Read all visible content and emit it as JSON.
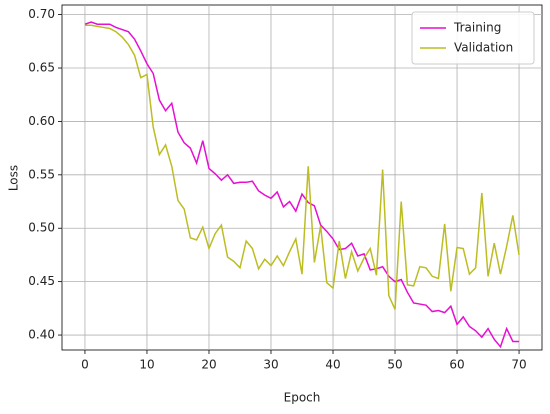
{
  "chart_data": {
    "type": "line",
    "xlabel": "Epoch",
    "ylabel": "Loss",
    "x": [
      0,
      1,
      2,
      3,
      4,
      5,
      6,
      7,
      8,
      9,
      10,
      11,
      12,
      13,
      14,
      15,
      16,
      17,
      18,
      19,
      20,
      21,
      22,
      23,
      24,
      25,
      26,
      27,
      28,
      29,
      30,
      31,
      32,
      33,
      34,
      35,
      36,
      37,
      38,
      39,
      40,
      41,
      42,
      43,
      44,
      45,
      46,
      47,
      48,
      49,
      50,
      51,
      52,
      53,
      54,
      55,
      56,
      57,
      58,
      59,
      60,
      61,
      62,
      63,
      64,
      65,
      66,
      67,
      68,
      69,
      70
    ],
    "series": [
      {
        "name": "Training",
        "color": "#e60fd2",
        "values": [
          0.691,
          0.693,
          0.691,
          0.691,
          0.691,
          0.688,
          0.686,
          0.684,
          0.677,
          0.666,
          0.654,
          0.645,
          0.62,
          0.61,
          0.617,
          0.59,
          0.58,
          0.575,
          0.561,
          0.582,
          0.556,
          0.551,
          0.545,
          0.55,
          0.542,
          0.543,
          0.543,
          0.544,
          0.535,
          0.531,
          0.528,
          0.534,
          0.52,
          0.525,
          0.516,
          0.532,
          0.524,
          0.521,
          0.503,
          0.497,
          0.49,
          0.48,
          0.481,
          0.486,
          0.474,
          0.476,
          0.461,
          0.462,
          0.464,
          0.455,
          0.45,
          0.452,
          0.44,
          0.43,
          0.429,
          0.428,
          0.422,
          0.423,
          0.421,
          0.427,
          0.41,
          0.417,
          0.408,
          0.404,
          0.398,
          0.406,
          0.396,
          0.389,
          0.406,
          0.394,
          0.394
        ]
      },
      {
        "name": "Validation",
        "color": "#bcbd22",
        "values": [
          0.69,
          0.69,
          0.689,
          0.688,
          0.687,
          0.684,
          0.679,
          0.672,
          0.662,
          0.641,
          0.644,
          0.595,
          0.569,
          0.578,
          0.558,
          0.526,
          0.518,
          0.491,
          0.489,
          0.501,
          0.481,
          0.495,
          0.503,
          0.473,
          0.469,
          0.463,
          0.488,
          0.481,
          0.462,
          0.471,
          0.465,
          0.474,
          0.465,
          0.478,
          0.49,
          0.457,
          0.558,
          0.468,
          0.502,
          0.449,
          0.444,
          0.488,
          0.453,
          0.478,
          0.46,
          0.472,
          0.481,
          0.456,
          0.555,
          0.437,
          0.424,
          0.525,
          0.447,
          0.446,
          0.464,
          0.463,
          0.455,
          0.453,
          0.504,
          0.441,
          0.482,
          0.481,
          0.457,
          0.463,
          0.533,
          0.455,
          0.486,
          0.457,
          0.483,
          0.512,
          0.475
        ]
      }
    ],
    "xlim": [
      -3.7,
      73.7
    ],
    "xticks": [
      0,
      10,
      20,
      30,
      40,
      50,
      60,
      70
    ],
    "ylim": [
      0.386,
      0.709
    ],
    "yticks": [
      {
        "value": 0.4,
        "label": "0.40"
      },
      0.45,
      {
        "value": 0.5,
        "label": "0.50"
      },
      0.55,
      {
        "value": 0.6,
        "label": "0.60"
      },
      0.65,
      {
        "value": 0.7,
        "label": "0.70"
      }
    ],
    "grid": true,
    "legend": "upper right"
  }
}
